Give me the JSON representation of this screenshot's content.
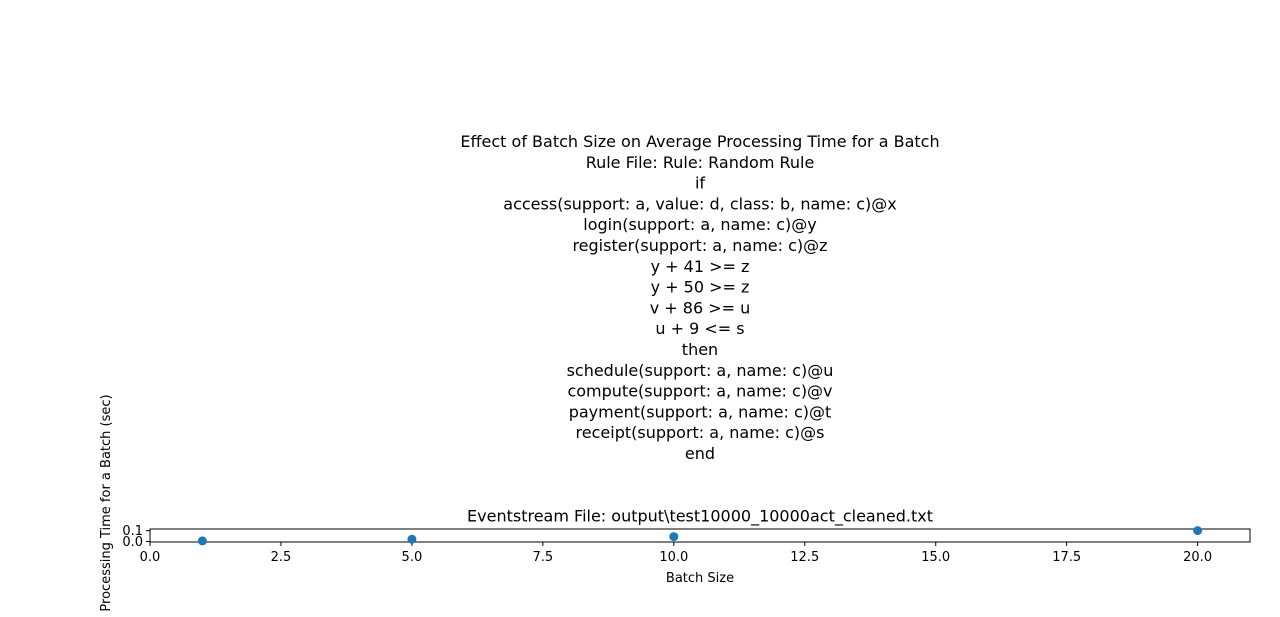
{
  "chart_data": {
    "type": "scatter",
    "title_lines": [
      "Effect of Batch Size on Average Processing Time for a Batch",
      "Rule File: Rule: Random Rule",
      "if",
      "access(support: a, value: d, class: b, name: c)@x",
      "login(support: a, name: c)@y",
      "register(support: a, name: c)@z",
      "y + 41 >= z",
      "y + 50 >= z",
      "v + 86 >= u",
      "u + 9 <= s",
      "then",
      "schedule(support: a, name: c)@u",
      "compute(support: a, name: c)@v",
      "payment(support: a, name: c)@t",
      "receipt(support: a, name: c)@s",
      "end",
      "",
      "",
      "Eventstream File: output\\test10000_10000act_cleaned.txt"
    ],
    "xlabel": "Batch Size",
    "ylabel": "Processing Time for a Batch (sec)",
    "xlim": [
      0,
      21
    ],
    "ylim": [
      -0.005,
      0.115
    ],
    "xticks": [
      0.0,
      2.5,
      5.0,
      7.5,
      10.0,
      12.5,
      15.0,
      17.5,
      20.0
    ],
    "xtick_labels": [
      "0.0",
      "2.5",
      "5.0",
      "7.5",
      "10.0",
      "12.5",
      "15.0",
      "17.5",
      "20.0"
    ],
    "yticks": [
      0.0,
      0.1
    ],
    "ytick_labels": [
      "0.0",
      "0.1"
    ],
    "grid": false,
    "marker_color": "#1f77b4",
    "points": [
      {
        "x": 1,
        "y": 0.005
      },
      {
        "x": 5,
        "y": 0.02
      },
      {
        "x": 10,
        "y": 0.045
      },
      {
        "x": 20,
        "y": 0.1
      }
    ]
  }
}
